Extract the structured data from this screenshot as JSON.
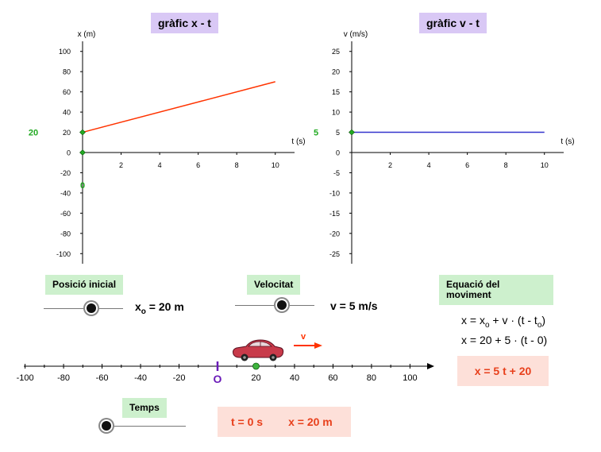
{
  "graphs": {
    "xt": {
      "title": "gràfic x - t",
      "xlabel": "t (s)",
      "ylabel": "x (m)",
      "xticks": [
        2,
        4,
        6,
        8,
        10
      ],
      "yticks": [
        100,
        80,
        60,
        40,
        20,
        0,
        -20,
        -40,
        -60,
        -80,
        -100
      ],
      "xlim": [
        0,
        11
      ],
      "ylim": [
        -110,
        110
      ],
      "line_color": "#ff3300",
      "marker_value_label": "20",
      "marker_time_label": "0",
      "marker_color": "#22aa22"
    },
    "vt": {
      "title": "gràfic v - t",
      "xlabel": "t (s)",
      "ylabel": "v (m/s)",
      "xticks": [
        2,
        4,
        6,
        8,
        10
      ],
      "yticks": [
        25,
        20,
        15,
        10,
        5,
        0,
        -5,
        -10,
        -15,
        -20,
        -25
      ],
      "xlim": [
        0,
        11
      ],
      "ylim": [
        -27.5,
        27.5
      ],
      "line_color": "#3333cc",
      "marker_value_label": "5",
      "marker_color": "#22aa22"
    }
  },
  "chart_data": [
    {
      "type": "line",
      "title": "gràfic x - t",
      "xlabel": "t (s)",
      "ylabel": "x (m)",
      "x": [
        0,
        10
      ],
      "y": [
        20,
        70
      ],
      "xlim": [
        0,
        11
      ],
      "ylim": [
        -110,
        110
      ]
    },
    {
      "type": "line",
      "title": "gràfic v - t",
      "xlabel": "t (s)",
      "ylabel": "v (m/s)",
      "x": [
        0,
        10
      ],
      "y": [
        5,
        5
      ],
      "xlim": [
        0,
        11
      ],
      "ylim": [
        -27.5,
        27.5
      ]
    }
  ],
  "controls": {
    "position": {
      "label": "Posició inicial",
      "value_text": " = 20 m",
      "x_letter": "x",
      "x_sub": "o",
      "value": 20,
      "min": -100,
      "max": 100
    },
    "velocity": {
      "label": "Velocitat",
      "value_text": "v = 5 m/s",
      "value": 5,
      "min": -25,
      "max": 25
    },
    "time": {
      "label": "Temps",
      "value_text_t": "t = 0 s",
      "value_text_x": "x = 20 m",
      "value": 0
    }
  },
  "equation": {
    "label": "Equació del moviment",
    "line1_a": "x = x",
    "line1_sub": "o",
    "line1_b": " + v · (t - t",
    "line1_sub2": "o",
    "line1_c": ")",
    "line2": "x = 20 + 5 · (t - 0)",
    "result": "x = 5 t + 20"
  },
  "axis": {
    "ticks": [
      -100,
      -80,
      -60,
      -40,
      -20,
      20,
      40,
      60,
      80,
      100
    ],
    "origin_label": "O",
    "origin_color": "#6a1bb8",
    "car_position": 20,
    "velocity_arrow_label": "v",
    "arrow_color": "#ff3300"
  }
}
